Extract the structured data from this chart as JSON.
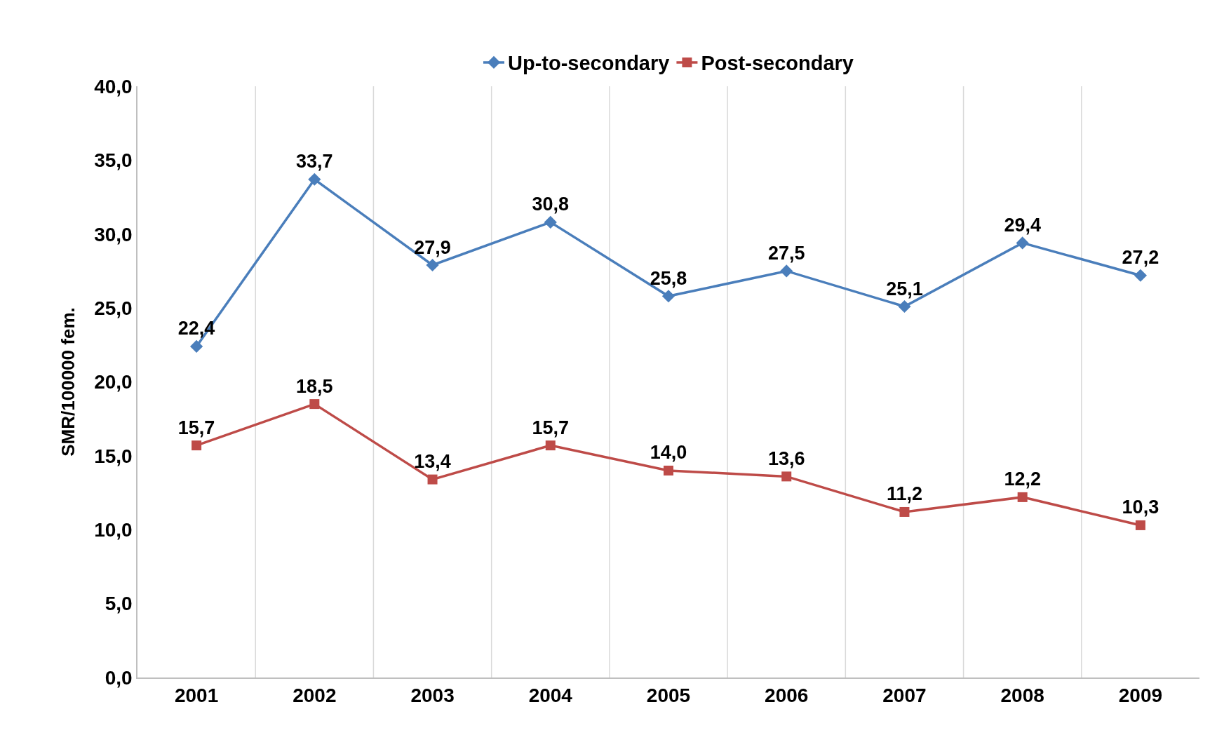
{
  "chart_data": {
    "type": "line",
    "ylabel": "SMR/100000 fem.",
    "categories": [
      "2001",
      "2002",
      "2003",
      "2004",
      "2005",
      "2006",
      "2007",
      "2008",
      "2009"
    ],
    "series": [
      {
        "name": "Up-to-secondary",
        "color": "#4a7ebb",
        "marker": "diamond",
        "values": [
          22.4,
          33.7,
          27.9,
          30.8,
          25.8,
          27.5,
          25.1,
          29.4,
          27.2
        ],
        "value_labels": [
          "22,4",
          "33,7",
          "27,9",
          "30,8",
          "25,8",
          "27,5",
          "25,1",
          "29,4",
          "27,2"
        ]
      },
      {
        "name": "Post-secondary",
        "color": "#be4b48",
        "marker": "square",
        "values": [
          15.7,
          18.5,
          13.4,
          15.7,
          14.0,
          13.6,
          11.2,
          12.2,
          10.3
        ],
        "value_labels": [
          "15,7",
          "18,5",
          "13,4",
          "15,7",
          "14,0",
          "13,6",
          "11,2",
          "12,2",
          "10,3"
        ]
      }
    ],
    "ylim": [
      0,
      40
    ],
    "yticks": [
      {
        "value": 0,
        "label": "0,0"
      },
      {
        "value": 5,
        "label": "5,0"
      },
      {
        "value": 10,
        "label": "10,0"
      },
      {
        "value": 15,
        "label": "15,0"
      },
      {
        "value": 20,
        "label": "20,0"
      },
      {
        "value": 25,
        "label": "25,0"
      },
      {
        "value": 30,
        "label": "30,0"
      },
      {
        "value": 35,
        "label": "35,0"
      },
      {
        "value": 40,
        "label": "40,0"
      }
    ],
    "grid": "x",
    "legend": "top",
    "line_style": "solid"
  }
}
